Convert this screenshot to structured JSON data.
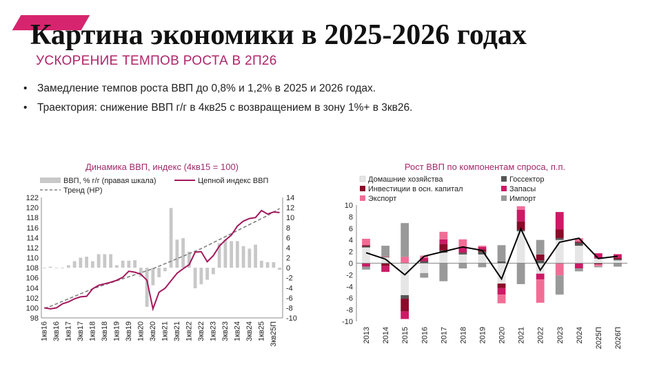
{
  "header": {
    "title": "Картина экономики в 2025-2026 годах",
    "subtitle": "УСКОРЕНИЕ ТЕМПОВ РОСТА В 2П26"
  },
  "bullets": [
    "Замедление темпов роста ВВП до 0,8% и 1,2% в 2025 и 2026 годах.",
    "Траектория: снижение ВВП г/г в 4кв25 с возвращением в зону 1%+ в 3кв26."
  ],
  "colors": {
    "accent": "#d6256e",
    "subtitle": "#b0246a",
    "chart_title": "#a32a6b",
    "gdp_bars": "#c8c8c8",
    "chain_index": "#a3185c",
    "trend": "#808080",
    "households": "#e6e6e6",
    "government": "#555555",
    "investment": "#8b0a2a",
    "inventories": "#cc1a66",
    "exports": "#f06e96",
    "imports": "#999999",
    "total_line": "#000000"
  },
  "chart_data": [
    {
      "type": "line",
      "title": "Динамика ВВП, индекс (4кв15 = 100)",
      "legend": {
        "bars": "ВВП, % г/г (правая шкала)",
        "line": "Цепной индекс ВВП",
        "trend": "Тренд (НР)"
      },
      "x_labels": [
        "1кв16",
        "3кв16",
        "1кв17",
        "3кв17",
        "1кв18",
        "3кв18",
        "1кв19",
        "3кв19",
        "1кв20",
        "3кв20",
        "1кв21",
        "3кв21",
        "1кв22",
        "3кв22",
        "1кв23",
        "3кв23",
        "1кв24",
        "3кв24",
        "1кв25",
        "3кв25П"
      ],
      "y_left": {
        "min": 98,
        "max": 122,
        "step": 2
      },
      "y_right": {
        "min": -10,
        "max": 14,
        "step": 2
      },
      "periods": 40,
      "index_series": [
        100,
        99.8,
        100,
        100.8,
        101.2,
        101.8,
        102.2,
        102.3,
        103.8,
        104.5,
        104.8,
        105.1,
        105.5,
        106.1,
        107.3,
        107.1,
        106.7,
        105.5,
        99.8,
        103.1,
        103.9,
        105.4,
        106.9,
        107.8,
        108.6,
        111.1,
        111.2,
        109.2,
        110.4,
        112.3,
        113.5,
        114.5,
        116.3,
        117.3,
        117.8,
        118,
        119.4,
        118.7,
        119.1,
        119
      ],
      "trend_series": [
        99.9,
        100.3,
        100.8,
        101.3,
        101.8,
        102.3,
        102.8,
        103.3,
        103.8,
        104.2,
        104.6,
        105,
        105.4,
        105.8,
        106.2,
        106.6,
        107,
        107.4,
        107.8,
        108.3,
        108.8,
        109.3,
        109.8,
        110.3,
        110.8,
        111.3,
        111.8,
        112.4,
        113,
        113.6,
        114.2,
        114.8,
        115.4,
        116,
        116.6,
        117.2,
        117.8,
        118.4,
        119.1,
        119.8
      ],
      "gdp_yoy_bars": [
        0,
        0.2,
        0,
        -0.1,
        0.5,
        1.3,
        2,
        2.2,
        1.3,
        2.7,
        2.7,
        2.7,
        0.5,
        1.4,
        1.4,
        1.5,
        -1.8,
        -7.8,
        -3.5,
        -1.9,
        -0.7,
        11.9,
        5.6,
        5.9,
        3.2,
        -4.1,
        -3.3,
        -2.4,
        -1.3,
        4.9,
        5.6,
        5.3,
        5.3,
        4.3,
        3.8,
        4.6,
        1.4,
        1.1,
        1.1,
        -0.4
      ]
    },
    {
      "type": "bar",
      "title": "Рост ВВП по компонентам спроса, п.п.",
      "categories": [
        "2013",
        "2014",
        "2015",
        "2016",
        "2017",
        "2018",
        "2019",
        "2020",
        "2021",
        "2022",
        "2023",
        "2024",
        "2025П",
        "2026П"
      ],
      "y_range": {
        "min": -10,
        "max": 10,
        "step": 2
      },
      "series": [
        {
          "name": "Домашние хозяйства",
          "values": [
            2.7,
            1,
            -5.5,
            -1.7,
            1.8,
            1.5,
            1.5,
            -3.5,
            5.5,
            -1.8,
            4,
            3,
            0.8,
            0.5
          ]
        },
        {
          "name": "Госсектор",
          "values": [
            0.2,
            0.1,
            -0.6,
            0.3,
            0.4,
            0.3,
            0.5,
            0.3,
            0.2,
            0.5,
            0.3,
            0.5,
            0.1,
            0.2
          ]
        },
        {
          "name": "Инвестиции в осн. капитал",
          "values": [
            0.2,
            -0.5,
            -2.2,
            0.1,
            1.1,
            0.1,
            0.4,
            -0.8,
            1.5,
            1,
            1.5,
            0.2,
            -0.2,
            0.2
          ]
        },
        {
          "name": "Запасы",
          "values": [
            -0.6,
            -1,
            -1.3,
            0.5,
            0.8,
            0.8,
            0.4,
            -1.1,
            2,
            -1,
            3,
            -0.9,
            0.8,
            0.6
          ]
        },
        {
          "name": "Экспорт",
          "values": [
            1.1,
            0.1,
            1.1,
            0.4,
            1.3,
            1.4,
            0.2,
            -1.5,
            0.6,
            -4,
            -2.1,
            0.6,
            -0.3,
            0.1
          ]
        },
        {
          "name": "Импорт",
          "values": [
            -0.5,
            1.8,
            5.8,
            -0.8,
            -3.1,
            -0.9,
            -0.7,
            2.8,
            -3.6,
            2.5,
            -3.3,
            -0.5,
            -0.2,
            -0.6
          ]
        }
      ],
      "total": [
        1.8,
        0.7,
        -2,
        1.2,
        2,
        2.8,
        2.2,
        -2.7,
        5.9,
        -1.2,
        3.6,
        4.3,
        0.8,
        1.2
      ]
    }
  ]
}
